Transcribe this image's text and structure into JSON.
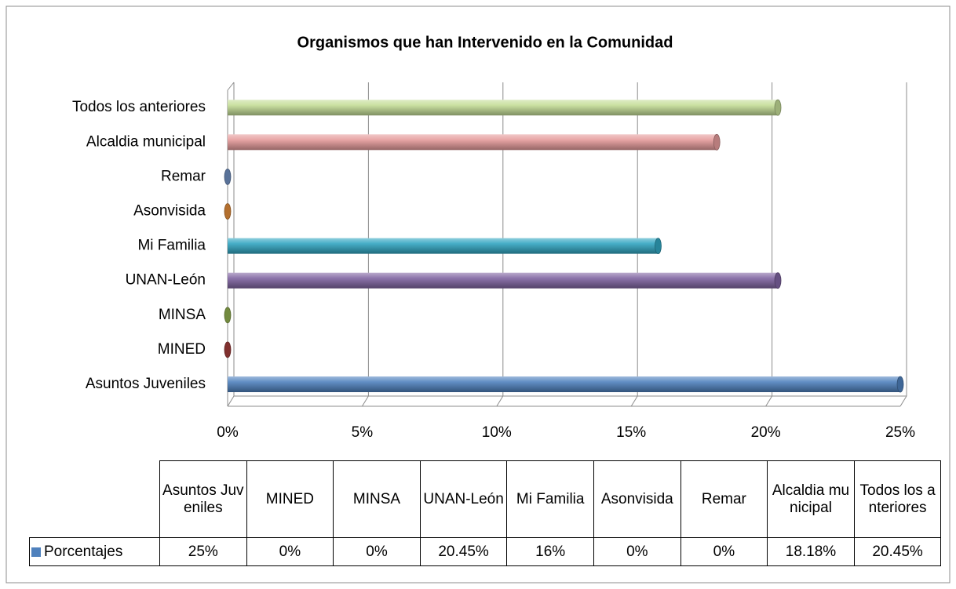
{
  "chart_data": {
    "type": "bar",
    "orientation": "horizontal",
    "title": "Organismos que han Intervenido en la Comunidad",
    "categories": [
      "Asuntos Juveniles",
      "MINED",
      "MINSA",
      "UNAN-León",
      "Mi Familia",
      "Asonvisida",
      "Remar",
      "Alcaldia municipal",
      "Todos los anteriores"
    ],
    "series": [
      {
        "name": "Porcentajes",
        "color": "#4f81bd",
        "values": [
          25,
          0,
          0,
          20.45,
          16,
          0,
          0,
          18.18,
          20.45
        ],
        "value_labels": [
          "25%",
          "0%",
          "0%",
          "20.45%",
          "16%",
          "0%",
          "0%",
          "18.18%",
          "20.45%"
        ]
      }
    ],
    "colors": [
      "#4f81bd",
      "#a03c3a",
      "#8fad4f",
      "#8064a2",
      "#31a5c1",
      "#e08b3a",
      "#6f8fbf",
      "#e59b9b",
      "#c4dc97"
    ],
    "xlim": [
      0,
      25
    ],
    "xticks": [
      {
        "value": 0,
        "label": "0%"
      },
      {
        "value": 5,
        "label": "5%"
      },
      {
        "value": 10,
        "label": "10%"
      },
      {
        "value": 15,
        "label": "15%"
      },
      {
        "value": 20,
        "label": "20%"
      },
      {
        "value": 25,
        "label": "25%"
      }
    ],
    "grid": true,
    "data_table": true
  }
}
